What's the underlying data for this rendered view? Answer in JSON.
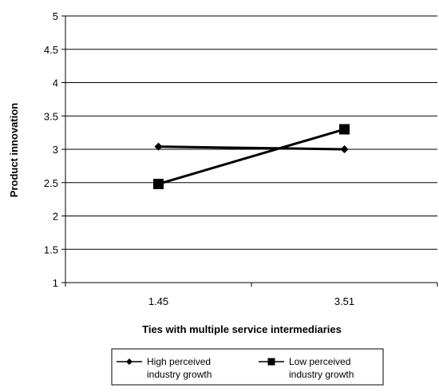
{
  "chart_data": {
    "type": "line",
    "xlabel": "Ties with multiple service intermediaries",
    "ylabel": "Product innovation",
    "categories": [
      "1.45",
      "3.51"
    ],
    "ylim": [
      1,
      5
    ],
    "yticks": [
      "1",
      "1.5",
      "2",
      "2.5",
      "3",
      "3.5",
      "4",
      "4.5",
      "5"
    ],
    "grid": true,
    "legend_position": "bottom",
    "series": [
      {
        "name_lines": [
          "High perceived",
          "industry growth"
        ],
        "marker": "diamond",
        "color": "#000000",
        "values": [
          3.04,
          3.0
        ]
      },
      {
        "name_lines": [
          "Low perceived",
          "industry growth"
        ],
        "marker": "square",
        "color": "#000000",
        "values": [
          2.48,
          3.3
        ]
      }
    ]
  }
}
